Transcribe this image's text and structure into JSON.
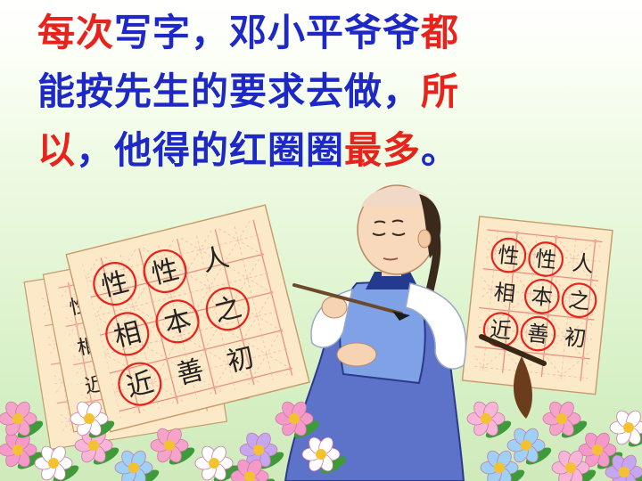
{
  "title": {
    "line1": [
      {
        "text": "每次",
        "color": "red"
      },
      {
        "text": "写字，邓小平爷爷",
        "color": "blue"
      },
      {
        "text": "都",
        "color": "red"
      }
    ],
    "line2": [
      {
        "text": "能按先生的要求去做，",
        "color": "blue"
      },
      {
        "text": "所",
        "color": "red"
      }
    ],
    "line3": [
      {
        "text": "以",
        "color": "red"
      },
      {
        "text": "，他得的红圈圈",
        "color": "blue"
      },
      {
        "text": "最多",
        "color": "red"
      },
      {
        "text": "。",
        "color": "blue"
      }
    ]
  },
  "colors": {
    "red": "#e8231c",
    "blue": "#1d28c6",
    "paper": "#fbe9c8",
    "grid": "#e58a7a"
  },
  "left_sheet": {
    "rows": [
      [
        {
          "char": "性",
          "circled": true
        },
        {
          "char": "性",
          "circled": true
        },
        {
          "char": "人",
          "circled": false
        }
      ],
      [
        {
          "char": "相",
          "circled": true
        },
        {
          "char": "本",
          "circled": true
        },
        {
          "char": "之",
          "circled": true
        }
      ],
      [
        {
          "char": "近",
          "circled": true
        },
        {
          "char": "善",
          "circled": false
        },
        {
          "char": "初",
          "circled": false
        }
      ]
    ],
    "back_chars": [
      "性",
      "相",
      "近"
    ]
  },
  "right_sheet": {
    "rows": [
      [
        {
          "char": "性",
          "circled": true
        },
        {
          "char": "性",
          "circled": true
        },
        {
          "char": "人",
          "circled": false
        }
      ],
      [
        {
          "char": "相",
          "circled": false
        },
        {
          "char": "本",
          "circled": true
        },
        {
          "char": "之",
          "circled": true
        }
      ],
      [
        {
          "char": "近",
          "circled": true
        },
        {
          "char": "善",
          "circled": true
        },
        {
          "char": "初",
          "circled": false
        }
      ]
    ]
  },
  "icons": [
    "boy-figure-icon",
    "writing-brush-icon",
    "flower-icon"
  ]
}
